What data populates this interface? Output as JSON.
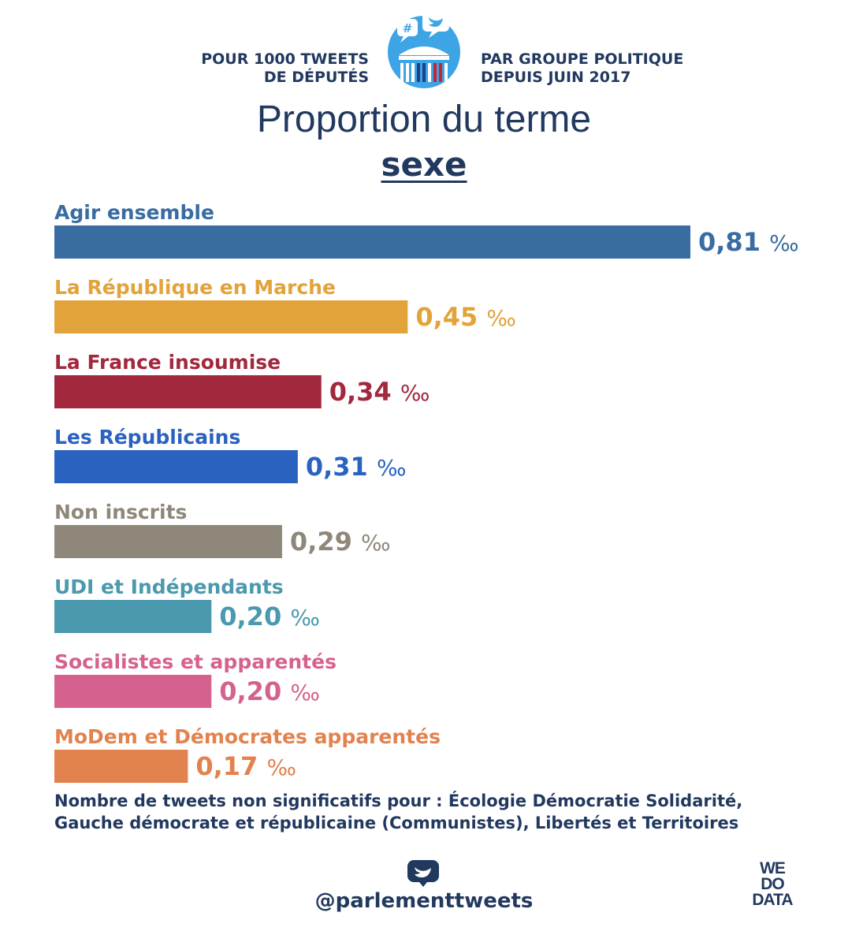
{
  "header": {
    "left_line1": "POUR 1000 TWEETS",
    "left_line2": "DE DÉPUTÉS",
    "right_line1": "PAR GROUPE POLITIQUE",
    "right_line2": "DEPUIS JUIN 2017",
    "logo_icon": "assembly-twitter-icon"
  },
  "title": "Proportion du terme",
  "term": "sexe",
  "chart_data": {
    "type": "bar",
    "orientation": "horizontal",
    "unit": "‰",
    "max_value": 0.81,
    "categories": [
      "Agir ensemble",
      "La République en Marche",
      "La France insoumise",
      "Les Républicains",
      "Non inscrits",
      "UDI et Indépendants",
      "Socialistes et apparentés",
      "MoDem et Démocrates apparentés"
    ],
    "values": [
      0.81,
      0.45,
      0.34,
      0.31,
      0.29,
      0.2,
      0.2,
      0.17
    ],
    "value_labels": [
      "0,81",
      "0,45",
      "0,34",
      "0,31",
      "0,29",
      "0,20",
      "0,20",
      "0,17"
    ],
    "colors": [
      "#396da2",
      "#e1a33a",
      "#a2283d",
      "#2a62c0",
      "#8f8779",
      "#4a99ae",
      "#d5628e",
      "#e2824e"
    ]
  },
  "footnote": {
    "line1": "Nombre de tweets non significatifs pour : Écologie Démocratie Solidarité,",
    "line2": "Gauche démocrate et républicaine (Communistes), Libertés et Territoires"
  },
  "footer": {
    "handle": "@parlementtweets",
    "handle_icon": "twitter-bubble-icon",
    "brand_line1": "WE",
    "brand_line2": "DO",
    "brand_line3": "DATA"
  }
}
